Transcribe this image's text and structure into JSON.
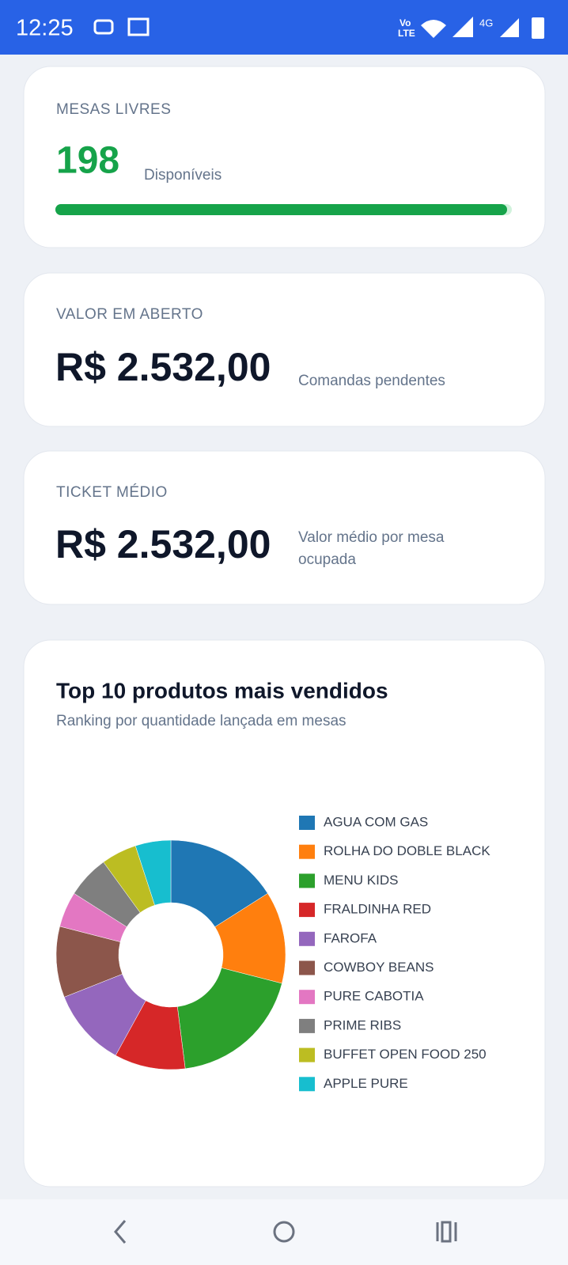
{
  "status_bar": {
    "time": "12:25",
    "network": "4G"
  },
  "cards": [
    {
      "label": "MESAS LIVRES",
      "value": "198",
      "note": "Disponíveis"
    },
    {
      "label": "VALOR EM ABERTO",
      "value": "R$ 2.532,00",
      "note": "Comandas pendentes"
    },
    {
      "label": "TICKET MÉDIO",
      "value": "R$ 2.532,00",
      "note_lines": [
        "Valor médio por mesa",
        "ocupada"
      ]
    }
  ],
  "chart_data": {
    "type": "donut",
    "title": "Top 10 produtos mais vendidos",
    "subtitle": "Ranking por quantidade lançada em mesas",
    "categories": [
      "AGUA COM GAS",
      "ROLHA DO DOBLE BLACK",
      "MENU KIDS",
      "FRALDINHA RED",
      "FAROFA",
      "COWBOY BEANS",
      "PURE CABOTIA",
      "PRIME RIBS",
      "BUFFET OPEN FOOD 250",
      "APPLE PURE"
    ],
    "values": [
      16,
      13,
      19,
      10,
      11,
      10,
      5,
      6,
      5,
      5
    ],
    "colors": [
      "#1f77b4",
      "#ff7f0e",
      "#2ca02c",
      "#d62728",
      "#9467bd",
      "#8c564b",
      "#e377c2",
      "#7f7f7f",
      "#bcbd22",
      "#17becf"
    ],
    "legend": "right"
  }
}
